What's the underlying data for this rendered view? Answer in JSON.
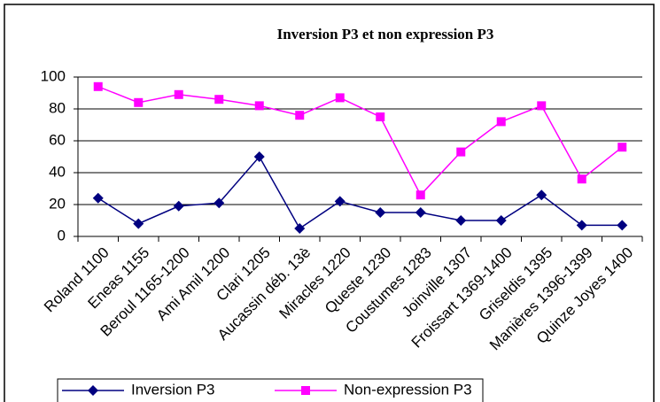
{
  "chart_data": {
    "type": "line",
    "title": "Inversion P3 et non expression P3",
    "categories": [
      "Roland 1100",
      "Eneas 1155",
      "Beroul 1165-1200",
      "Ami Amil 1200",
      "Clari 1205",
      "Aucassin déb. 13è",
      "Miracles 1220",
      "Queste 1230",
      "Coustumes 1283",
      "Joinville 1307",
      "Froissart 1369-1400",
      "Griseldis 1395",
      "Manières 1396-1399",
      "Quinze Joyes 1400"
    ],
    "series": [
      {
        "name": "Inversion P3",
        "color": "#000080",
        "marker": "diamond",
        "values": [
          24,
          8,
          19,
          21,
          50,
          5,
          22,
          15,
          15,
          10,
          10,
          26,
          7,
          7
        ]
      },
      {
        "name": "Non-expression P3",
        "color": "#ff00ff",
        "marker": "square",
        "values": [
          94,
          84,
          89,
          86,
          82,
          76,
          87,
          75,
          26,
          53,
          72,
          82,
          36,
          56
        ]
      }
    ],
    "ylim": [
      0,
      100
    ],
    "yticks": [
      0,
      20,
      40,
      60,
      80,
      100
    ],
    "grid": true
  }
}
